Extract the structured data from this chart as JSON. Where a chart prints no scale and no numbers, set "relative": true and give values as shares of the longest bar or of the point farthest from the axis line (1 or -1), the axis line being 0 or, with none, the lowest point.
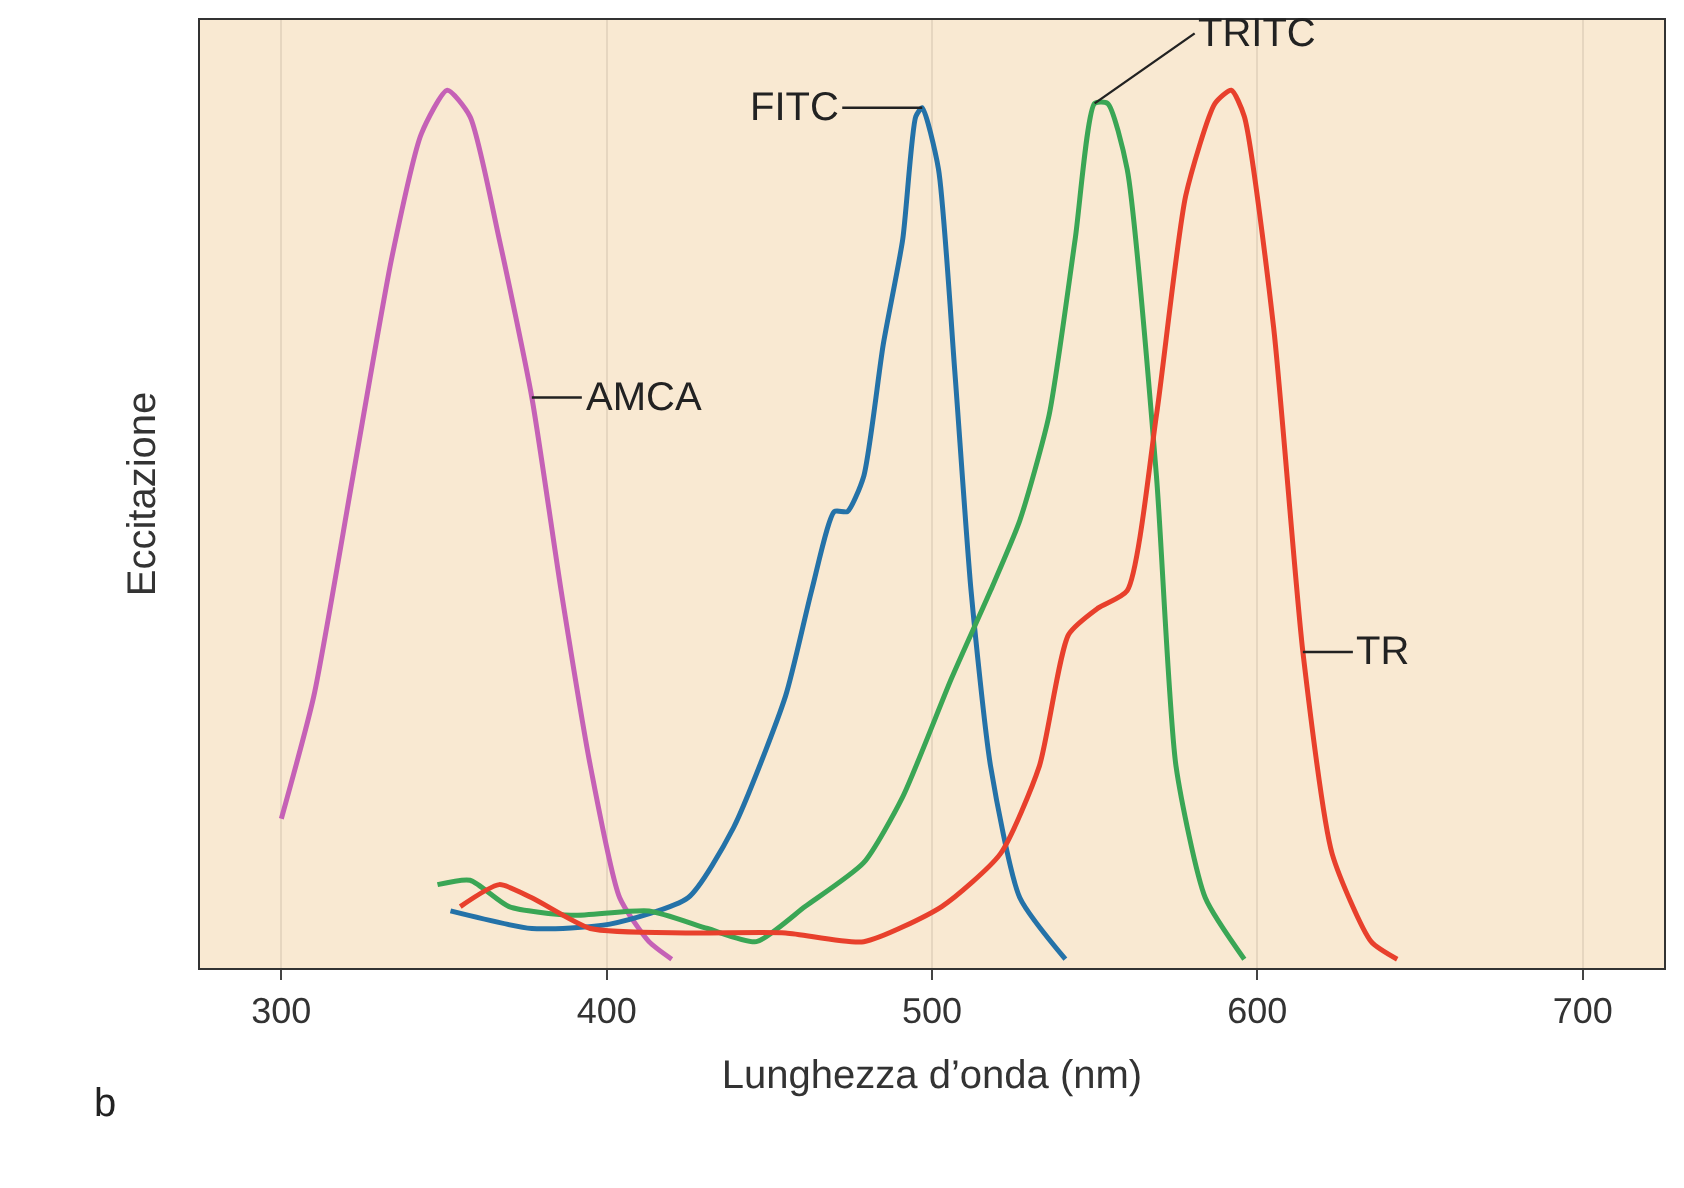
{
  "chart_data": {
    "type": "line",
    "xlabel": "Lunghezza d’onda (nm)",
    "ylabel": "Eccitazione",
    "relative": true,
    "xlim": [
      275,
      725
    ],
    "xticks": [
      300,
      400,
      500,
      600,
      700
    ],
    "grid": "x",
    "legend": false,
    "marker": "none",
    "line_style": "solid",
    "annotations": [
      "b"
    ],
    "series": [
      {
        "name": "AMCA",
        "color": "#c561b6",
        "x": [
          300,
          310,
          322,
          334,
          343,
          351,
          358,
          367,
          377,
          386,
          395,
          404,
          413,
          420
        ],
        "values": [
          0.17,
          0.31,
          0.56,
          0.81,
          0.95,
          1.0,
          0.97,
          0.83,
          0.65,
          0.43,
          0.23,
          0.08,
          0.03,
          0.01
        ]
      },
      {
        "name": "FITC",
        "color": "#2472a8",
        "x": [
          352,
          377,
          401,
          425,
          439,
          455,
          463,
          470,
          474,
          479,
          485,
          491,
          495,
          497,
          502,
          507,
          512,
          518,
          527,
          541
        ],
        "values": [
          0.065,
          0.045,
          0.05,
          0.08,
          0.16,
          0.31,
          0.43,
          0.52,
          0.52,
          0.56,
          0.71,
          0.83,
          0.97,
          0.98,
          0.91,
          0.68,
          0.43,
          0.23,
          0.08,
          0.01
        ]
      },
      {
        "name": "TRITC",
        "color": "#3aa655",
        "x": [
          348,
          358,
          370,
          389,
          413,
          431,
          446,
          461,
          479,
          491,
          506,
          518,
          527,
          536,
          544,
          550,
          554,
          560,
          569,
          575,
          584,
          596
        ],
        "values": [
          0.095,
          0.1,
          0.07,
          0.06,
          0.065,
          0.045,
          0.03,
          0.07,
          0.12,
          0.195,
          0.33,
          0.43,
          0.51,
          0.63,
          0.83,
          0.985,
          0.985,
          0.91,
          0.56,
          0.23,
          0.08,
          0.01
        ]
      },
      {
        "name": "TR",
        "color": "#e8402c",
        "x": [
          355,
          367,
          377,
          395,
          425,
          455,
          479,
          503,
          521,
          533,
          542,
          551,
          560,
          569,
          578,
          587,
          592,
          596,
          605,
          614,
          623,
          635,
          643
        ],
        "values": [
          0.07,
          0.095,
          0.08,
          0.045,
          0.04,
          0.04,
          0.03,
          0.07,
          0.13,
          0.23,
          0.38,
          0.41,
          0.43,
          0.63,
          0.88,
          0.985,
          1.0,
          0.97,
          0.73,
          0.36,
          0.13,
          0.03,
          0.01
        ]
      }
    ]
  }
}
